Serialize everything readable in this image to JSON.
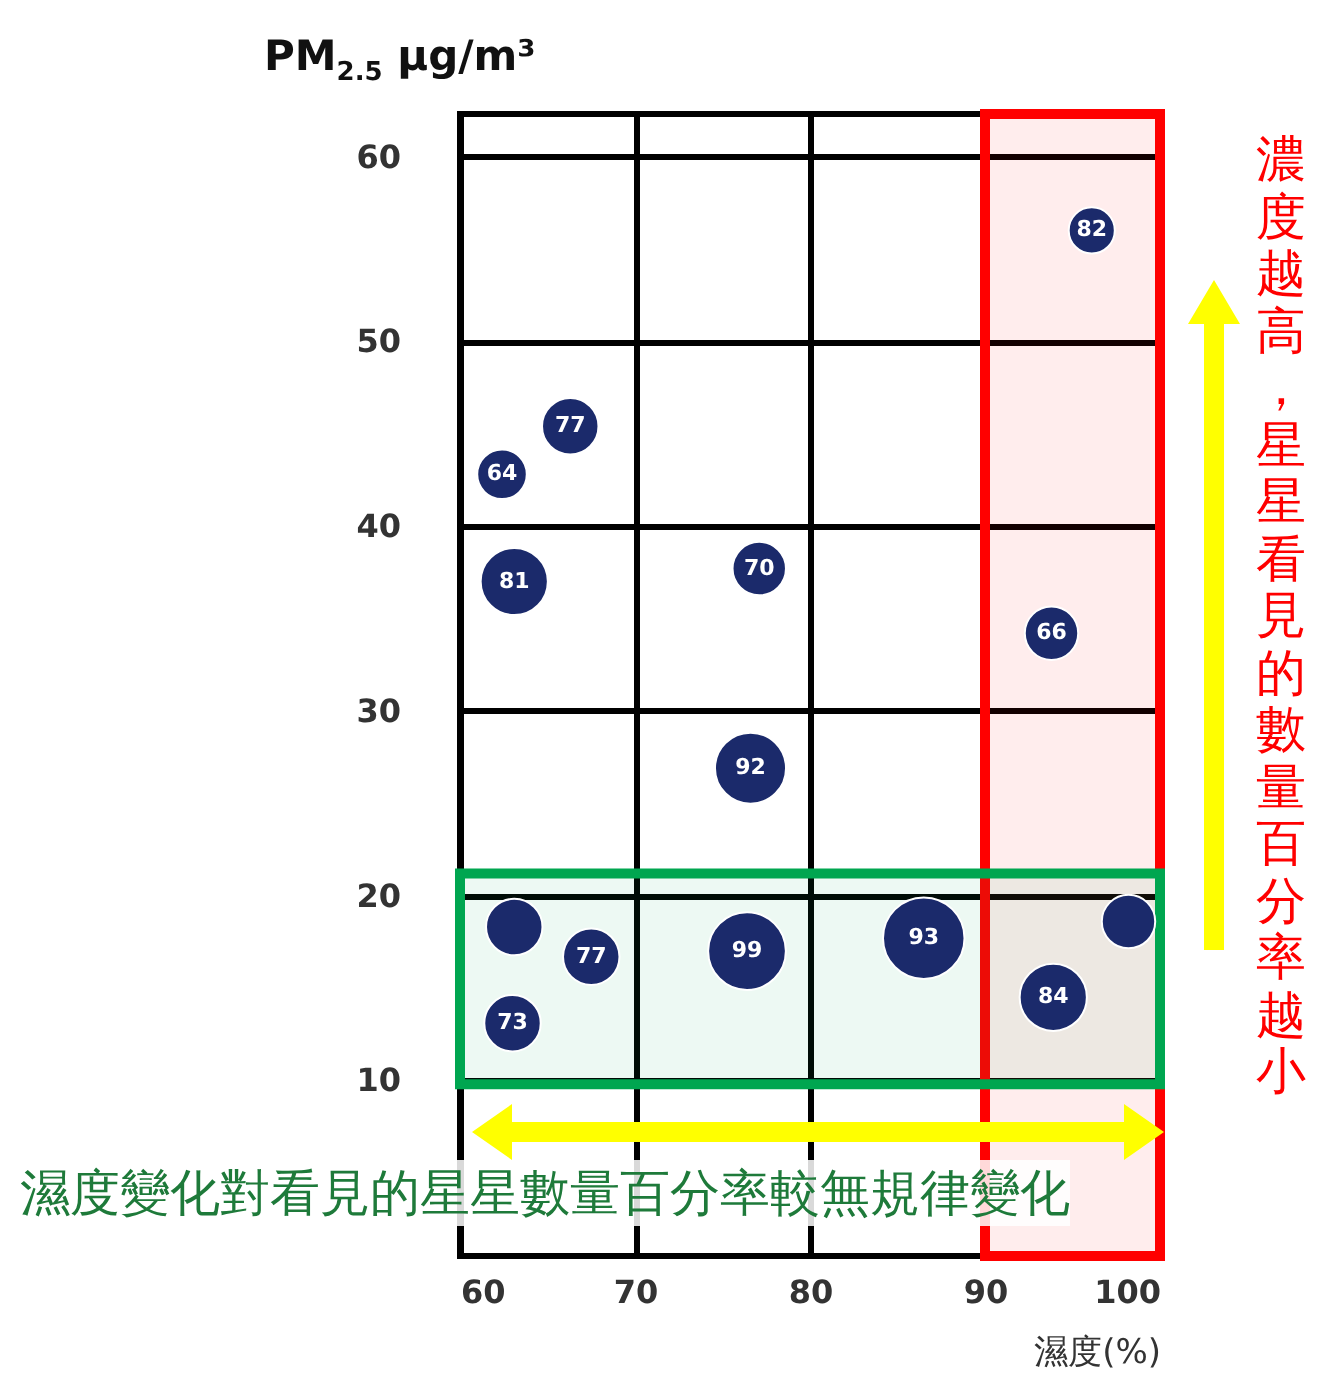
{
  "chart_data": {
    "type": "bubble",
    "xlabel": "濕度(%)",
    "ylabel": "PM$_{2.5}$ μg/m³",
    "x": [
      96.1,
      66.3,
      62.4,
      63.1,
      77.1,
      93.8,
      76.6,
      63.1,
      67.5,
      63.0,
      76.4,
      86.5,
      98.2,
      93.9
    ],
    "values": [
      56.0,
      45.4,
      42.8,
      37.0,
      37.7,
      34.2,
      26.9,
      18.3,
      16.7,
      13.1,
      17.0,
      17.7,
      18.6,
      14.5
    ],
    "sizes": [
      0.32,
      0.48,
      0.37,
      0.68,
      0.43,
      0.43,
      0.76,
      0.48,
      0.48,
      0.48,
      0.91,
      1,
      0.43,
      0.68
    ],
    "color": "#1b2a6b",
    "xlim": [
      60,
      100
    ],
    "xticks": [
      60,
      70,
      80,
      90,
      100
    ],
    "ylim": [
      0.5,
      62.3
    ],
    "yticks": [
      10,
      20,
      30,
      40,
      50,
      60
    ],
    "grid": true,
    "bands": [
      {
        "axis": "x",
        "from": 90,
        "to": 100,
        "color": "#ff0000"
      },
      {
        "axis": "y",
        "from": 9.8,
        "to": 21.2,
        "color": "#00a650"
      }
    ],
    "annotations": [
      "濕度變化對看見的星星數量百分率較無規律變化",
      "濃度越高，星星看見的數量百分率越小",
      {
        "text": "82",
        "x": 96.1,
        "y": 56.0
      },
      {
        "text": "77",
        "x": 66.3,
        "y": 45.4
      },
      {
        "text": "64",
        "x": 62.4,
        "y": 42.8
      },
      {
        "text": "81",
        "x": 63.1,
        "y": 37.0
      },
      {
        "text": "70",
        "x": 77.1,
        "y": 37.7
      },
      {
        "text": "66",
        "x": 93.8,
        "y": 34.2
      },
      {
        "text": "92",
        "x": 76.6,
        "y": 26.9
      },
      {
        "text": "77",
        "x": 67.5,
        "y": 16.7
      },
      {
        "text": "73",
        "x": 63.0,
        "y": 13.1
      },
      {
        "text": "99",
        "x": 76.4,
        "y": 17.0
      },
      {
        "text": "93",
        "x": 86.5,
        "y": 17.7
      },
      {
        "text": "84",
        "x": 93.9,
        "y": 14.5
      }
    ]
  }
}
